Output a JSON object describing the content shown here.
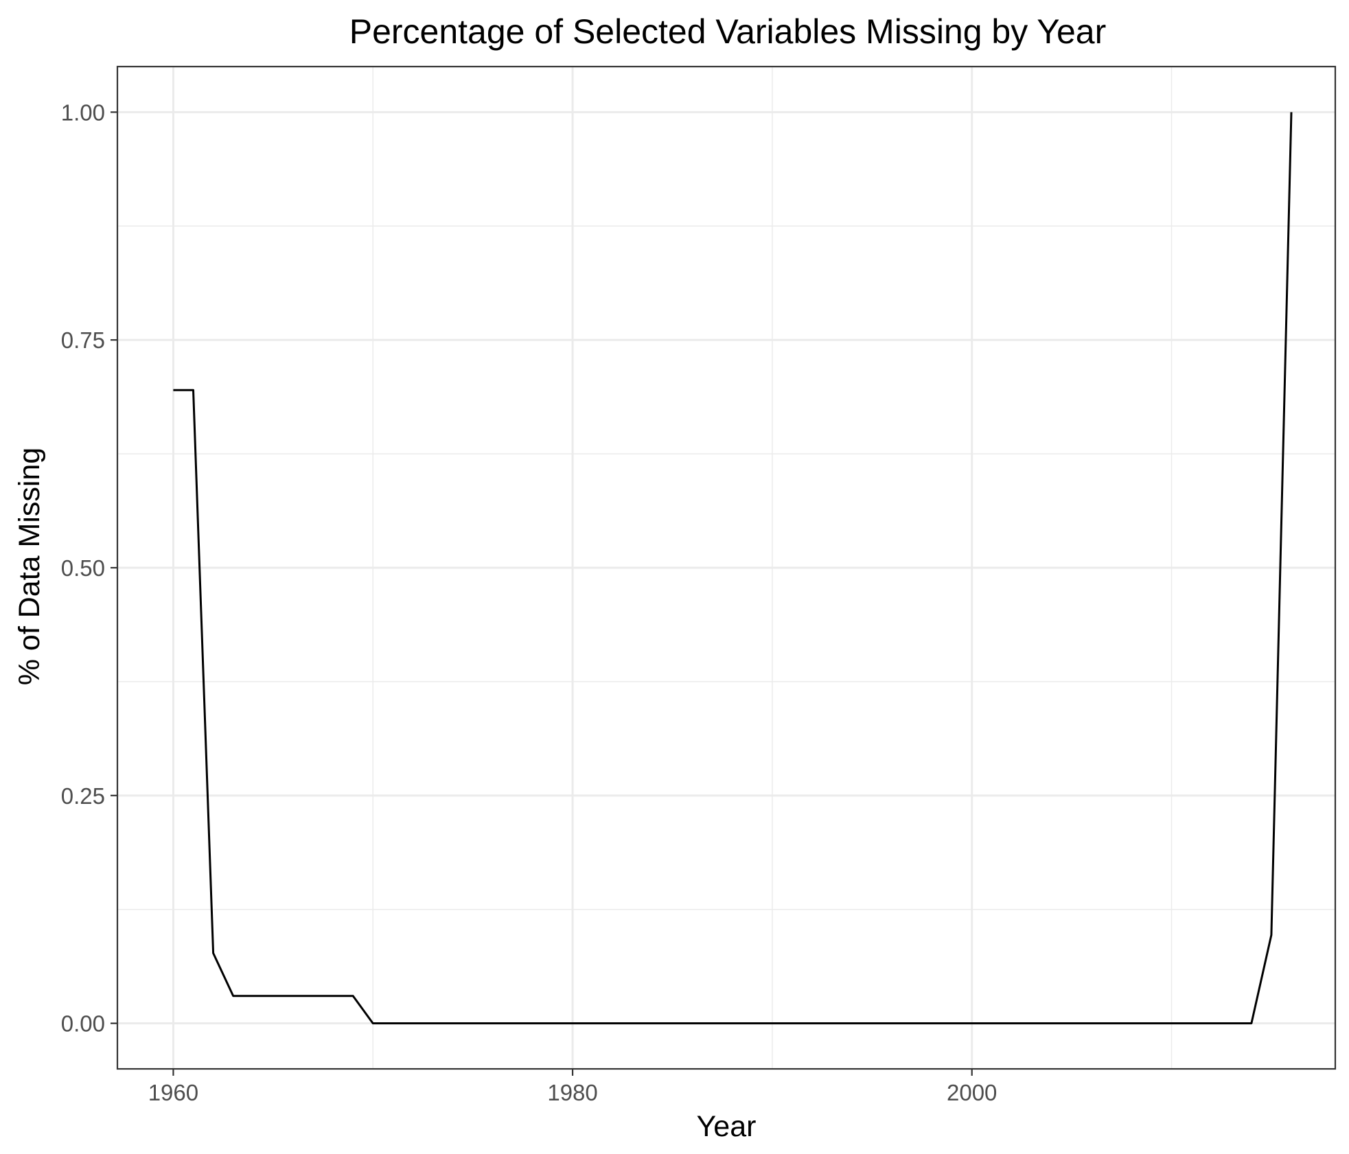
{
  "chart_data": {
    "type": "line",
    "title": "Percentage of Selected Variables Missing by Year",
    "xlabel": "Year",
    "ylabel": "% of Data Missing",
    "xlim": [
      1957.2,
      2018.2
    ],
    "ylim": [
      -0.05,
      1.05
    ],
    "x_ticks": [
      1960,
      1980,
      2000
    ],
    "x_minor_ticks": [
      1970,
      1990,
      2010
    ],
    "y_ticks": [
      0.0,
      0.25,
      0.5,
      0.75,
      1.0
    ],
    "y_tick_labels": [
      "0.00",
      "0.25",
      "0.50",
      "0.75",
      "1.00"
    ],
    "y_minor_ticks": [
      0.125,
      0.375,
      0.625,
      0.875
    ],
    "x_tick_labels": [
      "1960",
      "1980",
      "2000"
    ],
    "grid": true,
    "colors": {
      "line": "#000000",
      "grid": "#ebebeb",
      "panel_border": "#333333"
    },
    "series": [
      {
        "x": [
          1960,
          1961,
          1962,
          1963,
          1964,
          1965,
          1966,
          1967,
          1968,
          1969,
          1970,
          1975,
          1980,
          1985,
          1990,
          1995,
          2000,
          2005,
          2010,
          2014,
          2015,
          2016
        ],
        "y": [
          0.695,
          0.695,
          0.077,
          0.03,
          0.03,
          0.03,
          0.03,
          0.03,
          0.03,
          0.03,
          0.0,
          0.0,
          0.0,
          0.0,
          0.0,
          0.0,
          0.0,
          0.0,
          0.0,
          0.0,
          0.097,
          1.0
        ]
      }
    ]
  }
}
